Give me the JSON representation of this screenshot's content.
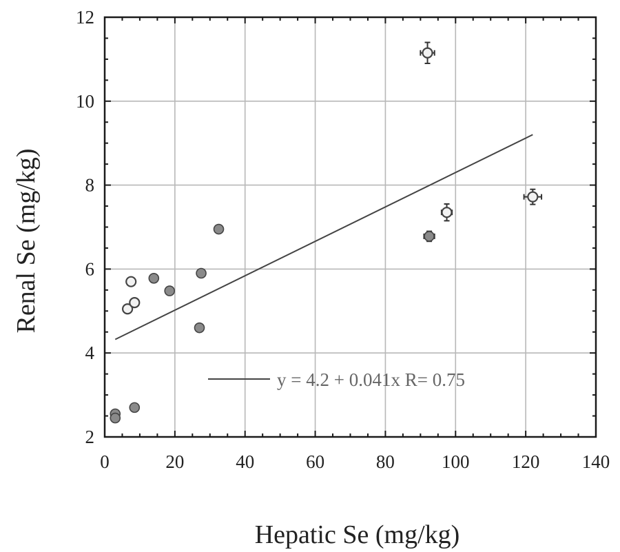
{
  "chart_data": {
    "type": "scatter",
    "title": "",
    "xlabel": "Hepatic Se (mg/kg)",
    "ylabel": "Renal Se (mg/kg)",
    "xlim": [
      0,
      140
    ],
    "ylim": [
      2,
      12
    ],
    "x_ticks": [
      "0",
      "20",
      "40",
      "60",
      "80",
      "100",
      "120",
      "140"
    ],
    "y_ticks": [
      "2",
      "4",
      "6",
      "8",
      "10",
      "12"
    ],
    "grid": true,
    "points": [
      {
        "x": 3,
        "y": 2.55,
        "style": "dark",
        "xerr": 0,
        "yerr": 0
      },
      {
        "x": 3,
        "y": 2.45,
        "style": "dark",
        "xerr": 0,
        "yerr": 0
      },
      {
        "x": 8.5,
        "y": 2.7,
        "style": "dark",
        "xerr": 0,
        "yerr": 0
      },
      {
        "x": 6.5,
        "y": 5.05,
        "style": "light",
        "xerr": 0,
        "yerr": 0
      },
      {
        "x": 8.5,
        "y": 5.2,
        "style": "light",
        "xerr": 0,
        "yerr": 0
      },
      {
        "x": 7.5,
        "y": 5.7,
        "style": "light",
        "xerr": 0,
        "yerr": 0
      },
      {
        "x": 14,
        "y": 5.78,
        "style": "dark",
        "xerr": 0,
        "yerr": 0
      },
      {
        "x": 18.5,
        "y": 5.48,
        "style": "dark",
        "xerr": 0,
        "yerr": 0
      },
      {
        "x": 27.5,
        "y": 5.9,
        "style": "dark",
        "xerr": 0,
        "yerr": 0
      },
      {
        "x": 27,
        "y": 4.6,
        "style": "dark",
        "xerr": 0,
        "yerr": 0
      },
      {
        "x": 32.5,
        "y": 6.95,
        "style": "dark",
        "xerr": 0,
        "yerr": 0
      },
      {
        "x": 92,
        "y": 11.15,
        "style": "light",
        "xerr": 2,
        "yerr": 0.25
      },
      {
        "x": 92.5,
        "y": 6.78,
        "style": "dark",
        "xerr": 1.5,
        "yerr": 0.12
      },
      {
        "x": 97.5,
        "y": 7.35,
        "style": "light",
        "xerr": 1.5,
        "yerr": 0.2
      },
      {
        "x": 122,
        "y": 7.72,
        "style": "light",
        "xerr": 2.5,
        "yerr": 0.18
      }
    ],
    "fit": {
      "intercept": 4.2,
      "slope": 0.041,
      "x_range": [
        3,
        122
      ]
    },
    "legend": {
      "position": "bottom-right",
      "text": "y = 4.2 + 0.041x   R= 0.75"
    }
  }
}
